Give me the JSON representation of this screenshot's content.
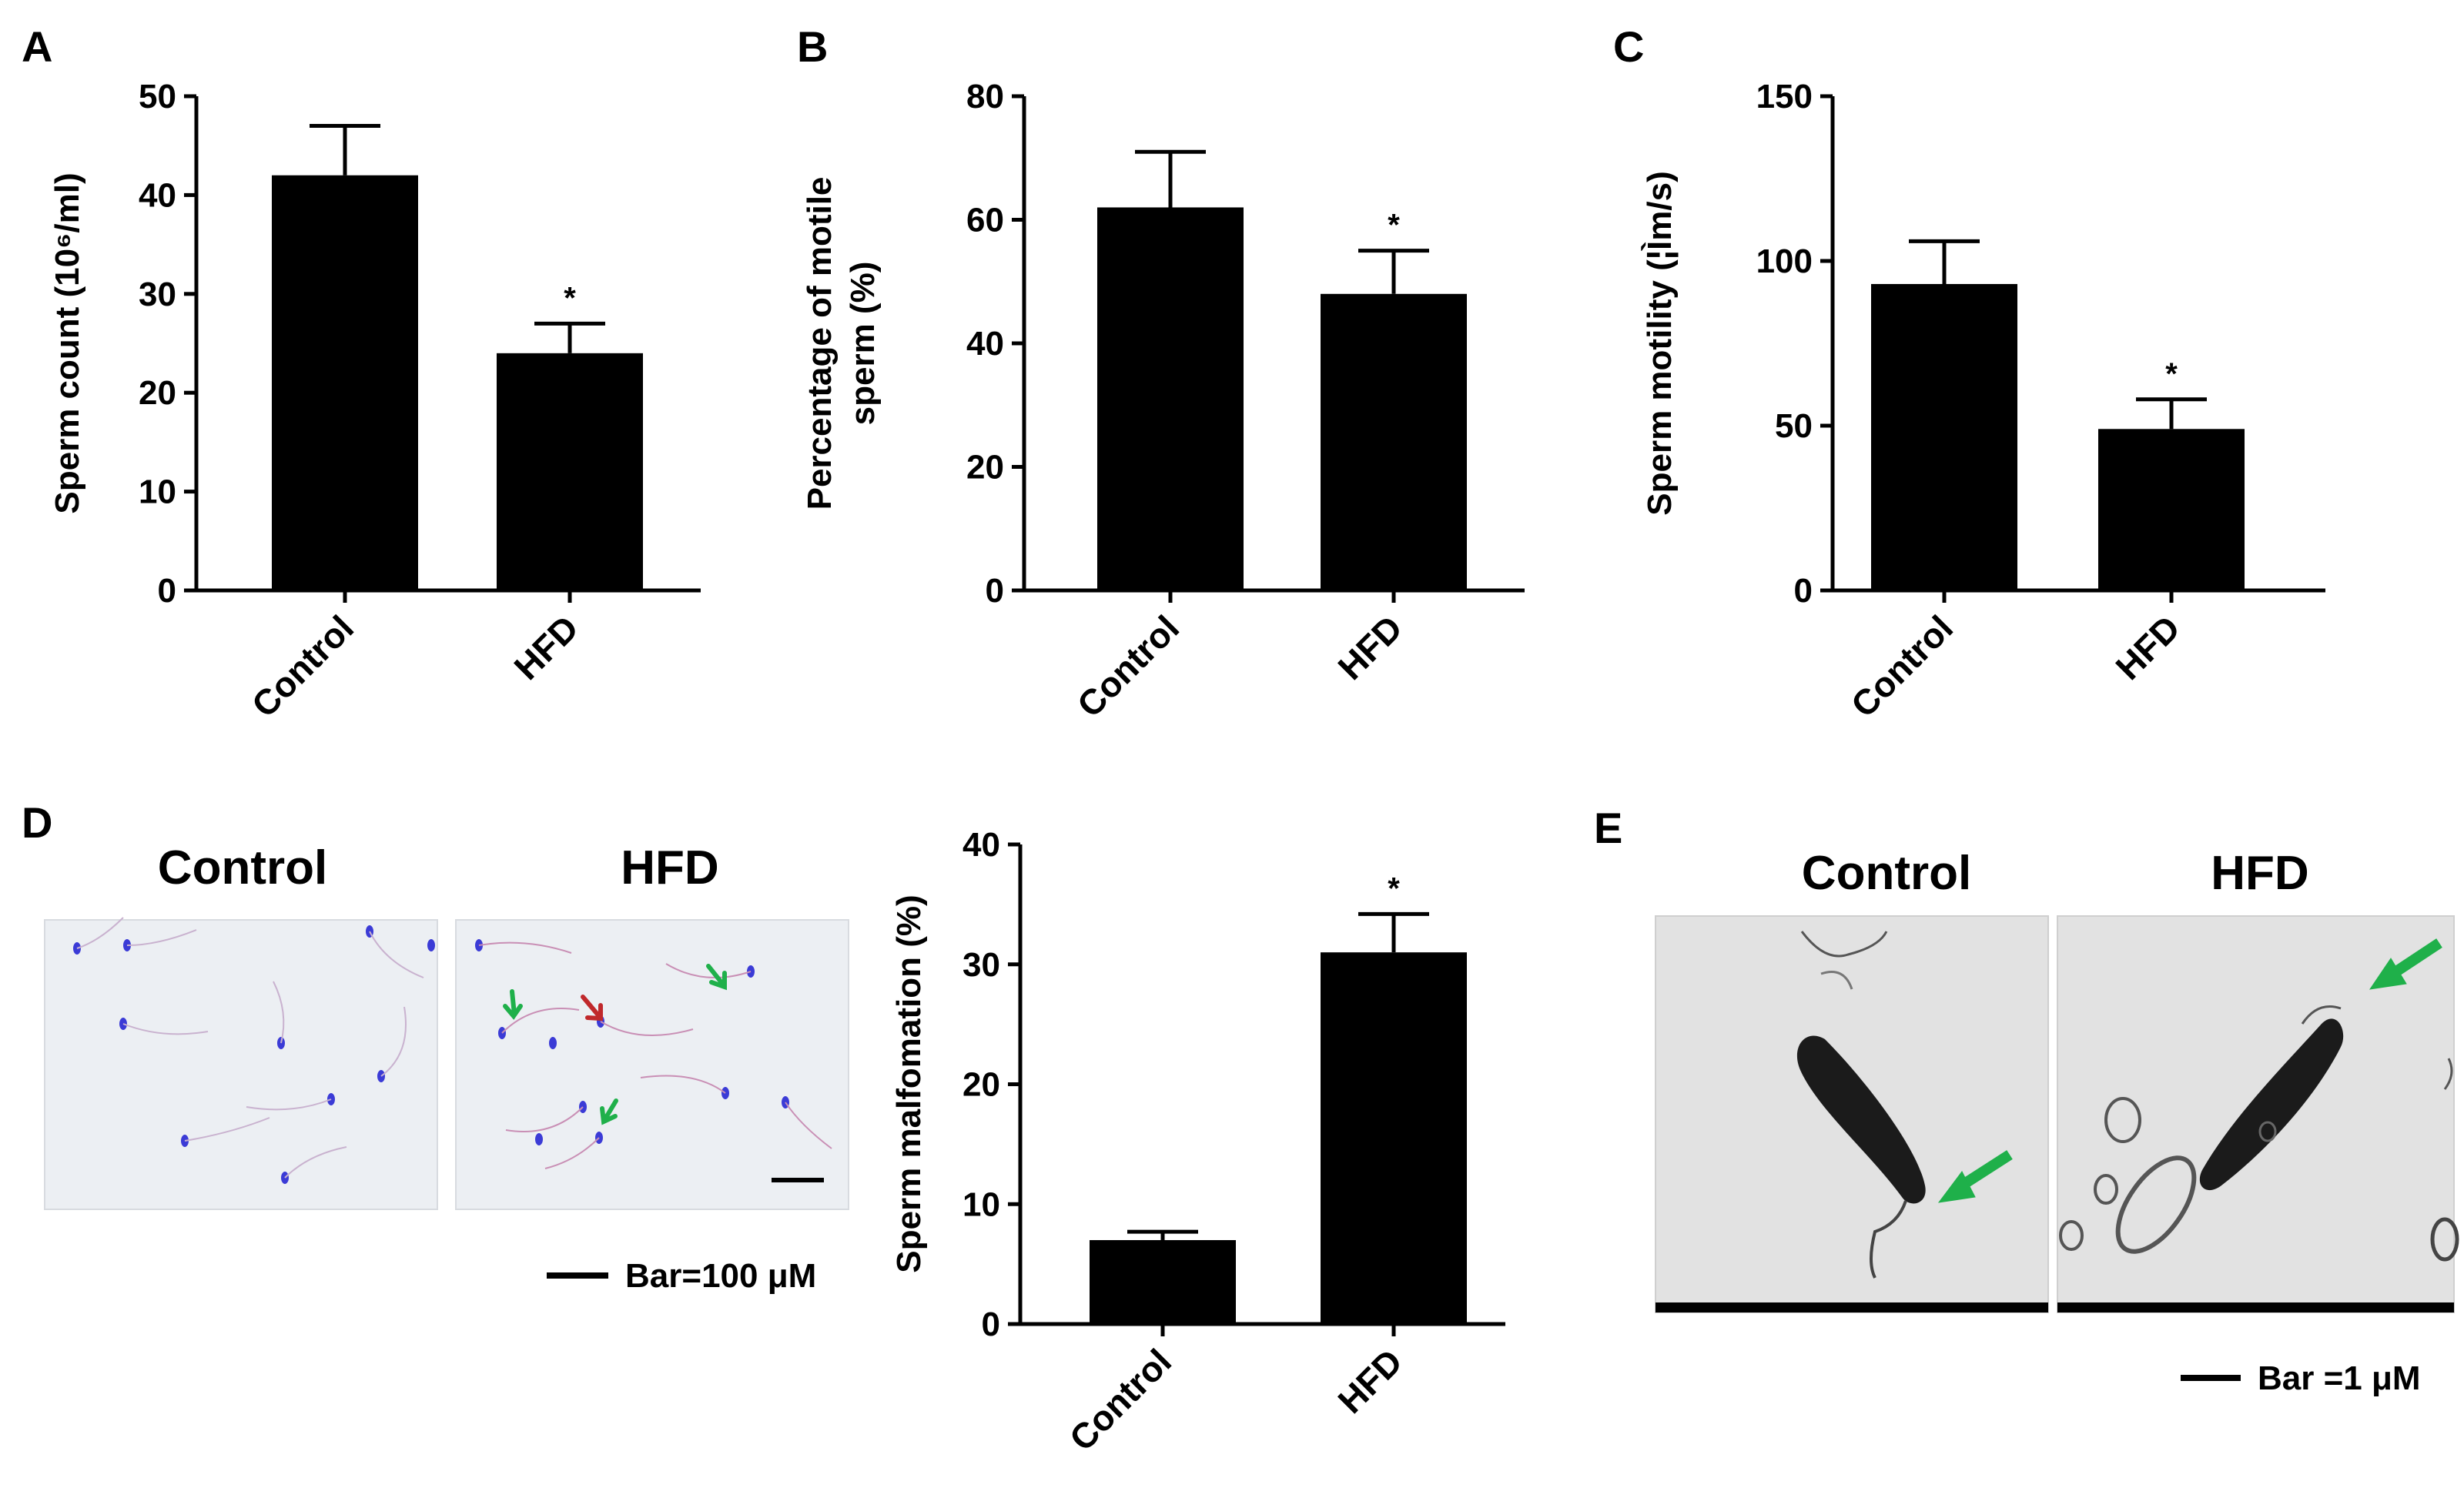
{
  "panels": {
    "A": {
      "letter": "A"
    },
    "B": {
      "letter": "B"
    },
    "C": {
      "letter": "C"
    },
    "D": {
      "letter": "D",
      "image_titles": [
        "Control",
        "HFD"
      ],
      "scale_bar_label": "Bar=100 μM"
    },
    "E": {
      "letter": "E",
      "image_titles": [
        "Control",
        "HFD"
      ],
      "scale_bar_label": "Bar =1 μM"
    }
  },
  "colors": {
    "bar_fill": "#000000",
    "axis": "#000000",
    "arrow_green": "#1fb04a",
    "arrow_red": "#c0282b",
    "stain_blue": "#3b3bd6",
    "micrograph_bg": "#eceff3",
    "tem_bg": "#e2e2e2"
  },
  "chart_data": [
    {
      "id": "A",
      "type": "bar",
      "categories": [
        "Control",
        "HFD"
      ],
      "values": [
        42,
        24
      ],
      "errors": [
        5,
        3
      ],
      "significance": [
        "",
        "*"
      ],
      "title": "",
      "xlabel": "",
      "ylabel": "Sperm count (10⁶/ml)",
      "ylim": [
        0,
        50
      ],
      "yticks": [
        0,
        10,
        20,
        30,
        40,
        50
      ]
    },
    {
      "id": "B",
      "type": "bar",
      "categories": [
        "Control",
        "HFD"
      ],
      "values": [
        62,
        48
      ],
      "errors": [
        9,
        7
      ],
      "significance": [
        "",
        "*"
      ],
      "title": "",
      "xlabel": "",
      "ylabel": [
        "Percentage of motile",
        "sperm (%)"
      ],
      "ylim": [
        0,
        80
      ],
      "yticks": [
        0,
        20,
        40,
        60,
        80
      ]
    },
    {
      "id": "C",
      "type": "bar",
      "categories": [
        "Control",
        "HFD"
      ],
      "values": [
        93,
        49
      ],
      "errors": [
        13,
        9
      ],
      "significance": [
        "",
        "*"
      ],
      "title": "",
      "xlabel": "",
      "ylabel": "Sperm motility (¦Ìm/s)",
      "ylim": [
        0,
        150
      ],
      "yticks": [
        0,
        50,
        100,
        150
      ]
    },
    {
      "id": "D",
      "type": "bar",
      "categories": [
        "Control",
        "HFD"
      ],
      "values": [
        7,
        31
      ],
      "errors": [
        0.7,
        3.2
      ],
      "significance": [
        "",
        "*"
      ],
      "title": "",
      "xlabel": "",
      "ylabel": "Sperm malfomation (%)",
      "ylim": [
        0,
        40
      ],
      "yticks": [
        0,
        10,
        20,
        30,
        40
      ]
    }
  ]
}
